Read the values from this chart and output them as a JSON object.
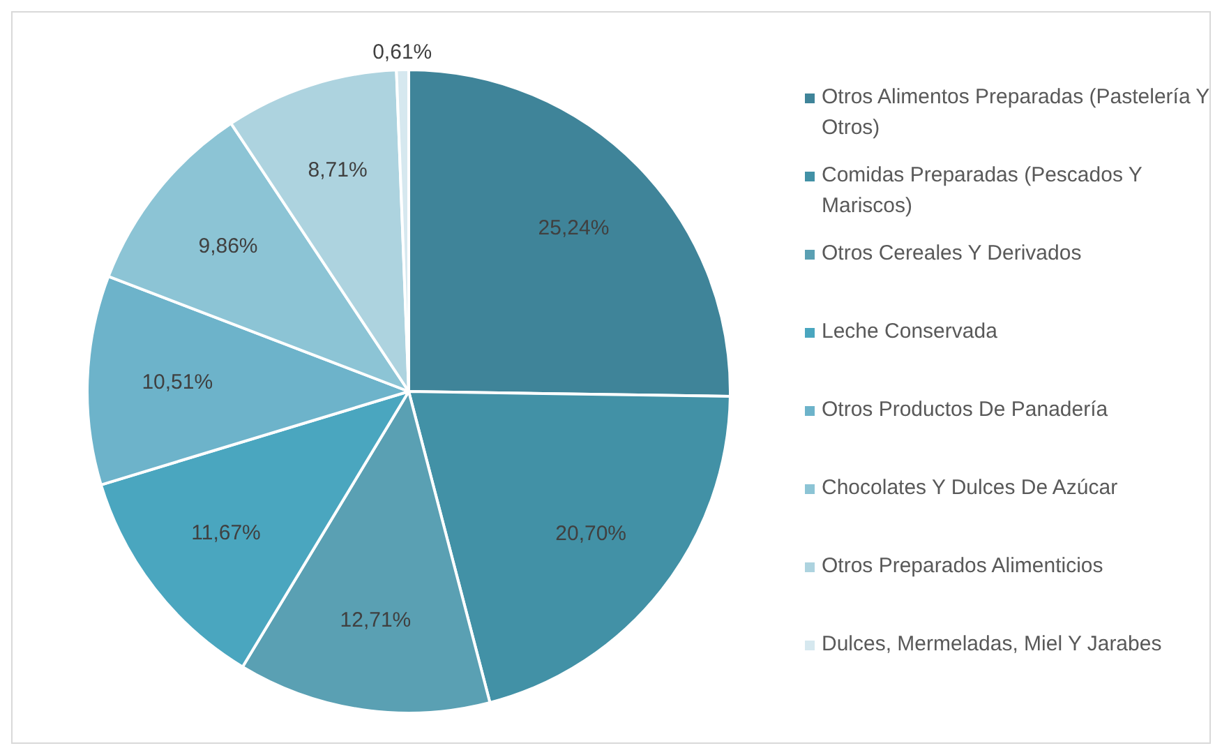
{
  "chart_data": {
    "type": "pie",
    "categories": [
      "Otros Alimentos Preparadas (Pastelería Y Otros)",
      "Comidas Preparadas (Pescados Y Mariscos)",
      "Otros Cereales Y Derivados",
      "Leche Conservada",
      "Otros Productos De Panadería",
      "Chocolates Y Dulces De Azúcar",
      "Otros Preparados Alimenticios",
      "Dulces, Mermeladas, Miel Y Jarabes"
    ],
    "values": [
      25.24,
      20.7,
      12.71,
      11.67,
      10.51,
      9.86,
      8.71,
      0.61
    ],
    "value_labels": [
      "25,24%",
      "20,70%",
      "12,71%",
      "11,67%",
      "10,51%",
      "9,86%",
      "8,71%",
      "0,61%"
    ],
    "colors": [
      "#3f8499",
      "#4291a6",
      "#5aa0b3",
      "#4aa6bf",
      "#6db3ca",
      "#8cc4d5",
      "#add3df",
      "#d6e8ef"
    ],
    "legend": "right"
  }
}
